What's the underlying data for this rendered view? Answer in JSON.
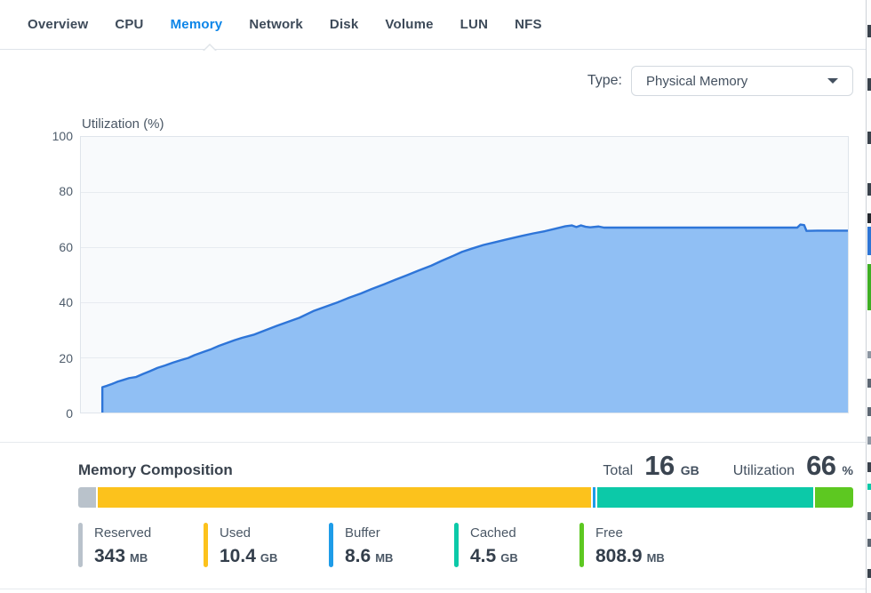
{
  "tabs": {
    "items": [
      {
        "label": "Overview"
      },
      {
        "label": "CPU"
      },
      {
        "label": "Memory"
      },
      {
        "label": "Network"
      },
      {
        "label": "Disk"
      },
      {
        "label": "Volume"
      },
      {
        "label": "LUN"
      },
      {
        "label": "NFS"
      }
    ],
    "active": "Memory"
  },
  "type_selector": {
    "label": "Type:",
    "value": "Physical Memory",
    "caret_icon": "chevron-down"
  },
  "chart_data": {
    "type": "area",
    "title": "Utilization (%)",
    "ylabel": "Utilization (%)",
    "xlabel": "",
    "ylim": [
      0,
      100
    ],
    "yticks": [
      0,
      20,
      40,
      60,
      80,
      100
    ],
    "x_axis_labels": "none shown (time series)",
    "grid": "horizontal only",
    "line_color": "#2e75d8",
    "fill_color": "#90bff4",
    "series": [
      {
        "name": "Physical Memory Utilization (%)",
        "points_note": "x = percent of plot width, y = utilization percent",
        "points": [
          [
            2.8,
            0
          ],
          [
            2.8,
            9.2
          ],
          [
            3.4,
            9.7
          ],
          [
            4.1,
            10.4
          ],
          [
            4.8,
            11.2
          ],
          [
            5.5,
            11.8
          ],
          [
            6.3,
            12.5
          ],
          [
            7.2,
            12.9
          ],
          [
            8.1,
            14.0
          ],
          [
            9.0,
            15.0
          ],
          [
            10.0,
            16.2
          ],
          [
            11.0,
            17.1
          ],
          [
            12.0,
            18.1
          ],
          [
            13.0,
            19.0
          ],
          [
            14.0,
            19.8
          ],
          [
            14.8,
            20.8
          ],
          [
            16.0,
            22.0
          ],
          [
            17.0,
            23.0
          ],
          [
            18.0,
            24.2
          ],
          [
            19.0,
            25.2
          ],
          [
            20.0,
            26.2
          ],
          [
            21.0,
            27.1
          ],
          [
            22.5,
            28.2
          ],
          [
            24.0,
            29.8
          ],
          [
            25.5,
            31.4
          ],
          [
            27.0,
            32.9
          ],
          [
            28.5,
            34.4
          ],
          [
            30.3,
            36.8
          ],
          [
            32.0,
            38.5
          ],
          [
            33.5,
            40.0
          ],
          [
            35.0,
            41.7
          ],
          [
            36.5,
            43.2
          ],
          [
            37.9,
            44.8
          ],
          [
            39.5,
            46.5
          ],
          [
            41.0,
            48.2
          ],
          [
            42.5,
            49.8
          ],
          [
            44.0,
            51.5
          ],
          [
            45.7,
            53.3
          ],
          [
            47.0,
            55.0
          ],
          [
            48.5,
            56.8
          ],
          [
            49.7,
            58.3
          ],
          [
            51.0,
            59.5
          ],
          [
            52.5,
            60.8
          ],
          [
            54.0,
            61.8
          ],
          [
            55.5,
            62.8
          ],
          [
            57.5,
            64.1
          ],
          [
            59.0,
            65.0
          ],
          [
            60.5,
            65.8
          ],
          [
            62.0,
            66.8
          ],
          [
            63.2,
            67.6
          ],
          [
            64.0,
            67.9
          ],
          [
            64.6,
            67.3
          ],
          [
            65.2,
            67.9
          ],
          [
            65.8,
            67.4
          ],
          [
            66.4,
            67.2
          ],
          [
            67.5,
            67.5
          ],
          [
            68.2,
            67.1
          ],
          [
            70.0,
            67.1
          ],
          [
            75.0,
            67.1
          ],
          [
            80.0,
            67.1
          ],
          [
            85.0,
            67.1
          ],
          [
            90.0,
            67.1
          ],
          [
            93.4,
            67.1
          ],
          [
            93.8,
            68.2
          ],
          [
            94.3,
            68.0
          ],
          [
            94.6,
            65.9
          ],
          [
            96.0,
            66.0
          ],
          [
            100.0,
            66.0
          ]
        ]
      }
    ]
  },
  "composition": {
    "title": "Memory Composition",
    "total": {
      "label": "Total",
      "value": "16",
      "unit": "GB"
    },
    "utilization": {
      "label": "Utilization",
      "value": "66",
      "unit": "%"
    },
    "segments": [
      {
        "name": "Reserved",
        "value": "343",
        "unit": "MB",
        "color": "#b9c2cb",
        "percent": 2.3
      },
      {
        "name": "Used",
        "value": "10.4",
        "unit": "GB",
        "color": "#fcc21c",
        "percent": 63.8
      },
      {
        "name": "Buffer",
        "value": "8.6",
        "unit": "MB",
        "color": "#1e9ce8",
        "percent": 0.3
      },
      {
        "name": "Cached",
        "value": "4.5",
        "unit": "GB",
        "color": "#0cc9a8",
        "percent": 27.9
      },
      {
        "name": "Free",
        "value": "808.9",
        "unit": "MB",
        "color": "#5dc821",
        "percent": 5.0
      }
    ]
  }
}
